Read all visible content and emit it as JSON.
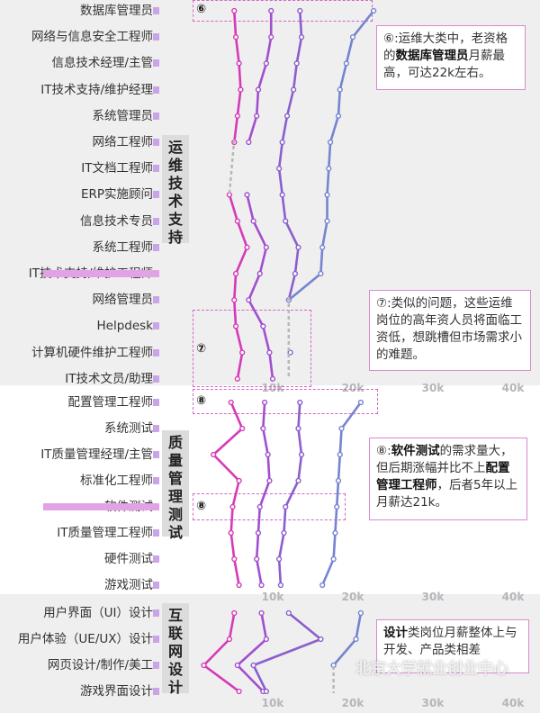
{
  "chart_data": {
    "type": "line",
    "x_unit": "monthly salary",
    "x_ticks": [
      "10k",
      "20k",
      "30k",
      "40k"
    ],
    "series": [
      {
        "color": "#d63ab8"
      },
      {
        "color": "#a24fcf"
      },
      {
        "color": "#8a5fcc"
      },
      {
        "color": "#7584d0"
      }
    ],
    "groups": [
      {
        "name": "运维技术支持",
        "rows": [
          "数据库管理员",
          "网络与信息安全工程师",
          "信息技术经理/主管",
          "IT技术支持/维护经理",
          "系统管理员",
          "网络工程师",
          "IT文档工程师",
          "ERP实施顾问",
          "信息技术专员",
          "系统工程师",
          "IT技术支持/维护工程师",
          "网络管理员",
          "Helpdesk",
          "计算机硬件维护工程师",
          "IT技术文员/助理"
        ],
        "values": [
          [
            5.2,
            5.4,
            5.8,
            6.0,
            5.6,
            5.2,
            null,
            4.6,
            5.6,
            6.8,
            5.4,
            5.2,
            5.4,
            6.2,
            5.6
          ],
          [
            9.8,
            9.8,
            9.2,
            8.2,
            8.0,
            7.0,
            null,
            6.8,
            7.6,
            9.2,
            8.4,
            7.0,
            8.8,
            9.6,
            10.0
          ],
          [
            13.4,
            13.6,
            13.0,
            12.6,
            11.8,
            11.2,
            10.8,
            11.2,
            11.6,
            13.2,
            12.8,
            12.0,
            null,
            12.2,
            null
          ],
          [
            22.6,
            20.0,
            19.2,
            18.4,
            18.2,
            17.2,
            17.0,
            16.8,
            16.8,
            16.2,
            16.0,
            12.0,
            null,
            null,
            null
          ]
        ]
      },
      {
        "name": "质量管理测试",
        "rows": [
          "配置管理工程师",
          "系统测试",
          "IT质量管理经理/主管",
          "标准化工程师",
          "软件测试",
          "IT质量管理工程师",
          "硬件测试",
          "游戏测试"
        ],
        "values": [
          [
            4.8,
            6.2,
            2.6,
            5.8,
            5.0,
            4.8,
            5.2,
            5.8
          ],
          [
            9.0,
            8.8,
            9.4,
            9.6,
            8.4,
            8.2,
            8.0,
            8.6
          ],
          [
            13.4,
            13.2,
            13.6,
            13.2,
            11.6,
            11.4,
            10.8,
            11.0
          ],
          [
            21.0,
            18.6,
            18.4,
            18.2,
            18.0,
            17.8,
            17.6,
            16.2
          ]
        ]
      },
      {
        "name": "互联网设计",
        "rows": [
          "用户界面（UI）设计",
          "用户体验（UE/UX）设计",
          "网页设计/制作/美工",
          "游戏界面设计"
        ],
        "values": [
          [
            5.2,
            4.6,
            1.4,
            5.8
          ],
          [
            8.6,
            9.2,
            5.6,
            8.8
          ],
          [
            12.0,
            16.0,
            7.6,
            9.2
          ],
          [
            21.0,
            20.4,
            17.6,
            null
          ]
        ]
      }
    ]
  },
  "callouts": {
    "c6": {
      "marker": "⑥",
      "pre": "⑥:运维大类中，老资格的",
      "bold": "数据库管理员",
      "post": "月薪最高，可达22k左右。"
    },
    "c7": {
      "marker": "⑦",
      "text": "⑦:类似的问题，这些运维岗位的高年资人员将面临工资低，想跳槽但市场需求小的难题。"
    },
    "c8": {
      "marker": "⑧",
      "pre": "⑧:",
      "bold1": "软件测试",
      "mid": "的需求量大，但后期涨幅并比不上",
      "bold2": "配置管理工程师",
      "post": "，后者5年以上月薪达21k。"
    },
    "c9": {
      "bold": "设计",
      "post": "类岗位月薪整体上与开发、产品类相差"
    }
  },
  "watermark": "北京大学就业创业中心"
}
